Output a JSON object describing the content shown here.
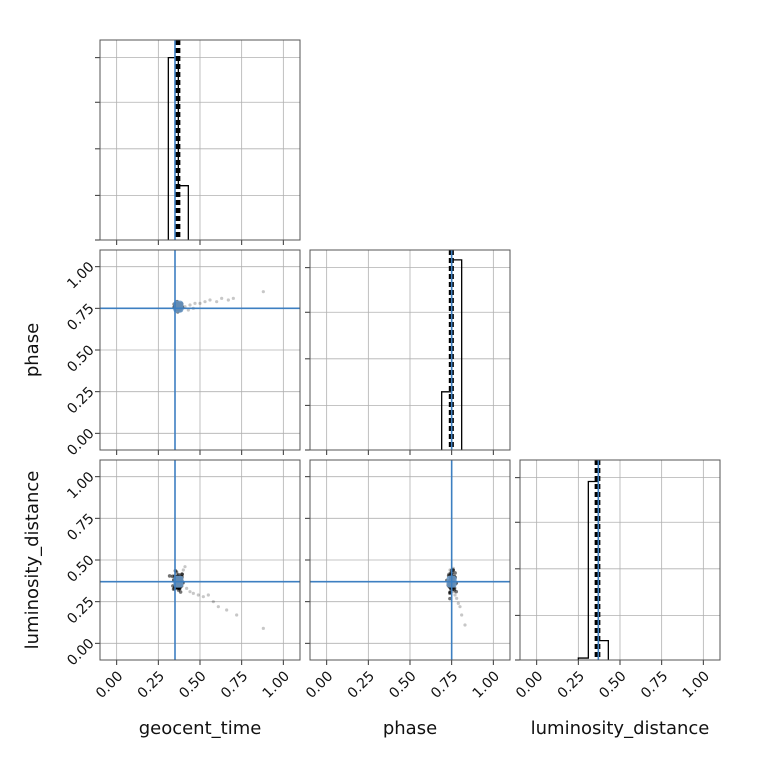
{
  "chart_data": {
    "type": "corner",
    "parameters": [
      "geocent_time",
      "phase",
      "luminosity_distance"
    ],
    "axis_range": [
      -0.1,
      1.1
    ],
    "ticks": [
      0.0,
      0.25,
      0.5,
      0.75,
      1.0
    ],
    "tick_labels": [
      "0.00",
      "0.25",
      "0.50",
      "0.75",
      "1.00"
    ],
    "grid": true,
    "truths": [
      0.35,
      0.75,
      0.37
    ],
    "truth_color": "#3d7fc1",
    "histograms": [
      {
        "parameter": "geocent_time",
        "bin_edges": [
          0.31,
          0.37,
          0.43
        ],
        "counts": [
          0.94,
          0.28
        ],
        "quantiles": [
          0.355,
          0.365,
          0.375
        ]
      },
      {
        "parameter": "phase",
        "bin_edges": [
          0.69,
          0.75,
          0.81
        ],
        "counts": [
          0.3,
          0.98
        ],
        "quantiles": [
          0.74,
          0.748,
          0.756
        ]
      },
      {
        "parameter": "luminosity_distance",
        "bin_edges": [
          0.25,
          0.31,
          0.37,
          0.43
        ],
        "counts": [
          0.01,
          0.92,
          0.1
        ],
        "quantiles": [
          0.355,
          0.365,
          0.375
        ]
      }
    ],
    "scatter_panels": [
      {
        "x_param": "geocent_time",
        "y_param": "phase",
        "core": {
          "x": 0.37,
          "y": 0.76,
          "sx": 0.012,
          "sy": 0.012,
          "n": 90
        },
        "outliers": [
          [
            0.41,
            0.76
          ],
          [
            0.44,
            0.77
          ],
          [
            0.47,
            0.78
          ],
          [
            0.5,
            0.78
          ],
          [
            0.53,
            0.79
          ],
          [
            0.56,
            0.8
          ],
          [
            0.6,
            0.79
          ],
          [
            0.63,
            0.81
          ],
          [
            0.67,
            0.8
          ],
          [
            0.7,
            0.81
          ],
          [
            0.88,
            0.85
          ],
          [
            0.43,
            0.74
          ],
          [
            0.46,
            0.75
          ]
        ]
      },
      {
        "x_param": "geocent_time",
        "y_param": "luminosity_distance",
        "core": {
          "x": 0.37,
          "y": 0.37,
          "sx": 0.015,
          "sy": 0.03,
          "n": 90
        },
        "outliers": [
          [
            0.42,
            0.33
          ],
          [
            0.44,
            0.31
          ],
          [
            0.46,
            0.3
          ],
          [
            0.49,
            0.29
          ],
          [
            0.52,
            0.28
          ],
          [
            0.55,
            0.29
          ],
          [
            0.58,
            0.25
          ],
          [
            0.61,
            0.22
          ],
          [
            0.66,
            0.2
          ],
          [
            0.72,
            0.17
          ],
          [
            0.88,
            0.09
          ],
          [
            0.4,
            0.44
          ],
          [
            0.41,
            0.46
          ]
        ]
      },
      {
        "x_param": "phase",
        "y_param": "luminosity_distance",
        "core": {
          "x": 0.75,
          "y": 0.37,
          "sx": 0.01,
          "sy": 0.03,
          "n": 90
        },
        "outliers": [
          [
            0.76,
            0.31
          ],
          [
            0.77,
            0.29
          ],
          [
            0.78,
            0.27
          ],
          [
            0.79,
            0.24
          ],
          [
            0.8,
            0.22
          ],
          [
            0.81,
            0.17
          ],
          [
            0.83,
            0.11
          ],
          [
            0.74,
            0.44
          ],
          [
            0.76,
            0.45
          ]
        ]
      }
    ]
  }
}
